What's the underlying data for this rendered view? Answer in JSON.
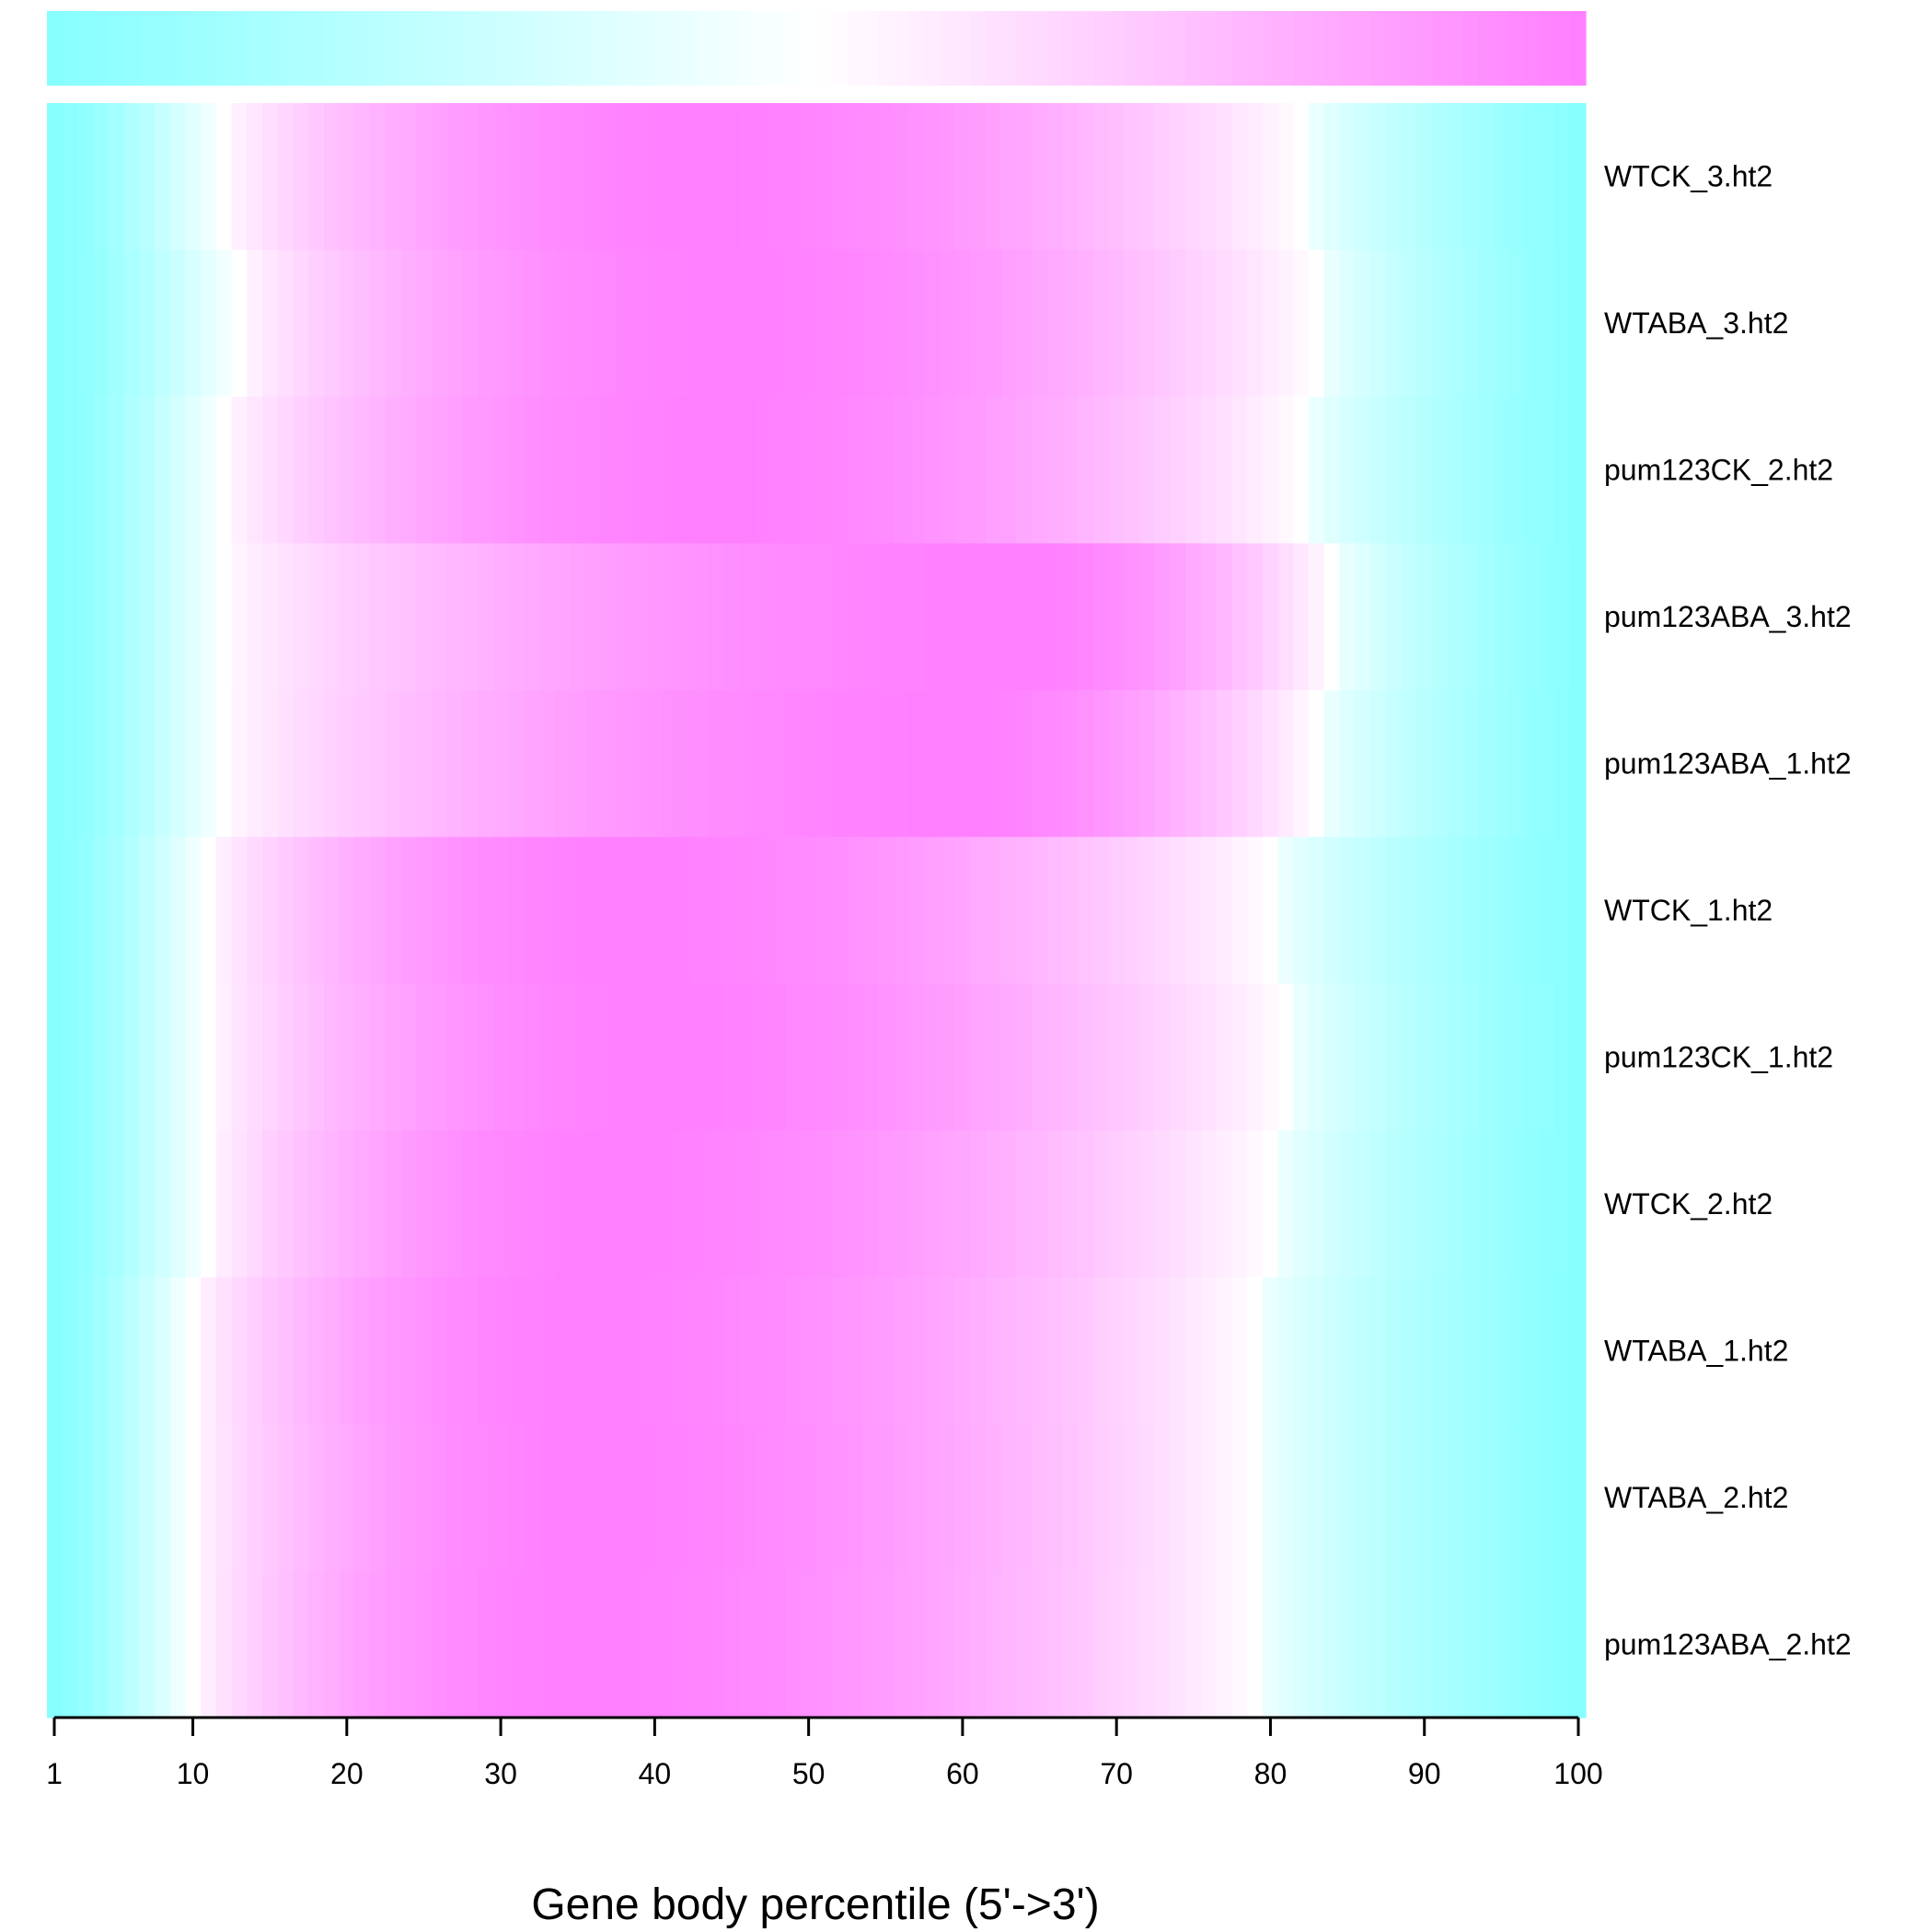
{
  "chart_data": {
    "type": "heatmap",
    "title": "",
    "xlabel": "Gene body percentile (5'->3')",
    "ylabel": "",
    "x_range": [
      1,
      100
    ],
    "x_ticks": [
      1,
      10,
      20,
      30,
      40,
      50,
      60,
      70,
      80,
      90,
      100
    ],
    "color_scale": {
      "low_color": "#87FFFF",
      "mid_color": "#FFFFFF",
      "high_color": "#FF80FF",
      "legend_placement": "top",
      "range": [
        0,
        1
      ]
    },
    "grid": false,
    "rows": [
      {
        "label": "WTCK_3.ht2",
        "peak": 43,
        "width": 34,
        "left_floor": 0.0,
        "right_floor": 0.0,
        "white_start": 12,
        "white_end": 82
      },
      {
        "label": "WTABA_3.ht2",
        "peak": 45,
        "width": 35,
        "left_floor": 0.0,
        "right_floor": 0.0,
        "white_start": 13,
        "white_end": 83
      },
      {
        "label": "pum123CK_2.ht2",
        "peak": 44,
        "width": 34,
        "left_floor": 0.0,
        "right_floor": 0.0,
        "white_start": 12,
        "white_end": 82
      },
      {
        "label": "pum123ABA_3.ht2",
        "peak": 64,
        "width": 38,
        "left_floor": 0.0,
        "right_floor": 0.0,
        "white_start": 12,
        "white_end": 84
      },
      {
        "label": "pum123ABA_1.ht2",
        "peak": 60,
        "width": 37,
        "left_floor": 0.0,
        "right_floor": 0.0,
        "white_start": 12,
        "white_end": 83
      },
      {
        "label": "WTCK_1.ht2",
        "peak": 38,
        "width": 33,
        "left_floor": 0.0,
        "right_floor": 0.0,
        "white_start": 11,
        "white_end": 80
      },
      {
        "label": "pum123CK_1.ht2",
        "peak": 40,
        "width": 33,
        "left_floor": 0.0,
        "right_floor": 0.0,
        "white_start": 11,
        "white_end": 81
      },
      {
        "label": "WTCK_2.ht2",
        "peak": 37,
        "width": 33,
        "left_floor": 0.0,
        "right_floor": 0.0,
        "white_start": 11,
        "white_end": 80
      },
      {
        "label": "WTABA_1.ht2",
        "peak": 35,
        "width": 32,
        "left_floor": 0.0,
        "right_floor": 0.0,
        "white_start": 10,
        "white_end": 79
      },
      {
        "label": "WTABA_2.ht2",
        "peak": 36,
        "width": 32,
        "left_floor": 0.0,
        "right_floor": 0.0,
        "white_start": 10,
        "white_end": 79
      },
      {
        "label": "pum123ABA_2.ht2",
        "peak": 35,
        "width": 32,
        "left_floor": 0.0,
        "right_floor": 0.0,
        "white_start": 10,
        "white_end": 79
      }
    ]
  }
}
